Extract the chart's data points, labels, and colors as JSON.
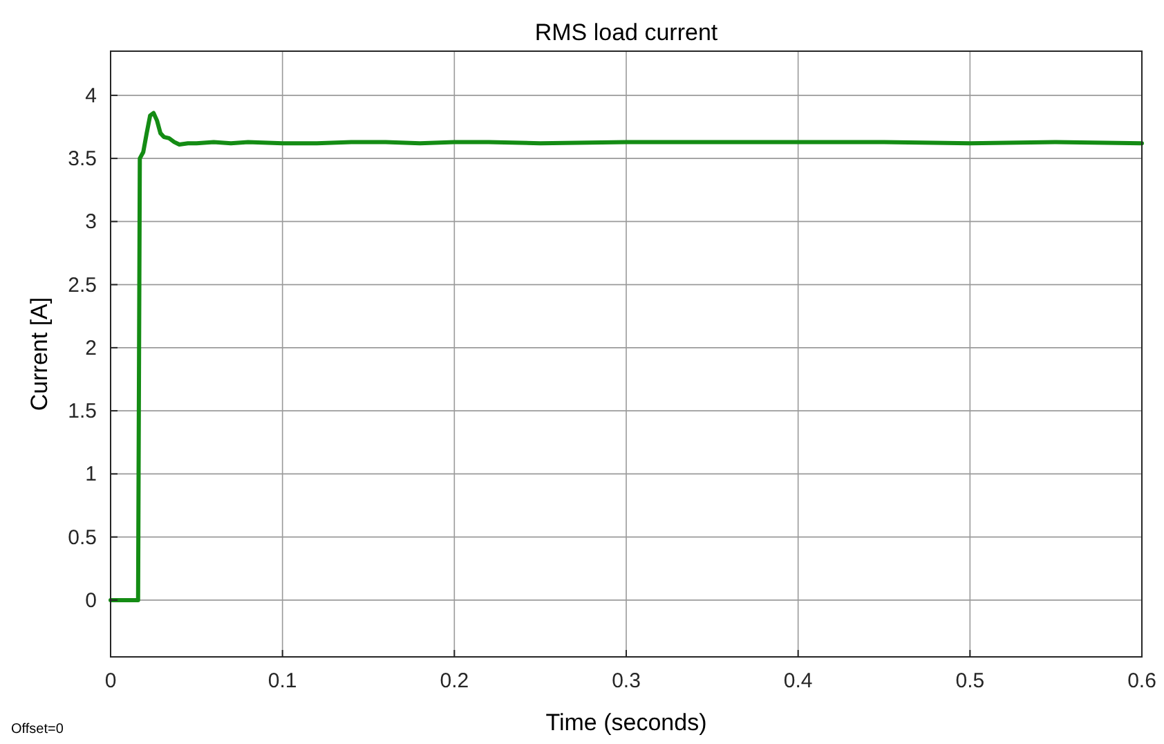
{
  "chart_data": {
    "type": "line",
    "title": "RMS load current",
    "xlabel": "Time (seconds)",
    "ylabel": "Current [A]",
    "annotations": [
      "Offset=0"
    ],
    "x": [
      0,
      0.016,
      0.017,
      0.019,
      0.021,
      0.023,
      0.025,
      0.027,
      0.029,
      0.031,
      0.034,
      0.037,
      0.04,
      0.045,
      0.05,
      0.06,
      0.07,
      0.08,
      0.1,
      0.12,
      0.14,
      0.16,
      0.18,
      0.2,
      0.22,
      0.25,
      0.3,
      0.35,
      0.4,
      0.45,
      0.5,
      0.55,
      0.6
    ],
    "series": [
      {
        "color": "#148c14",
        "values": [
          0,
          0,
          3.5,
          3.55,
          3.7,
          3.84,
          3.86,
          3.8,
          3.7,
          3.67,
          3.66,
          3.63,
          3.61,
          3.62,
          3.62,
          3.63,
          3.62,
          3.63,
          3.62,
          3.62,
          3.63,
          3.63,
          3.62,
          3.63,
          3.63,
          3.62,
          3.63,
          3.63,
          3.63,
          3.63,
          3.62,
          3.63,
          3.62
        ]
      }
    ],
    "xlim": [
      0,
      0.6
    ],
    "xticks": [
      0,
      0.1,
      0.2,
      0.3,
      0.4,
      0.5,
      0.6
    ],
    "ylim": [
      -0.45,
      4.35
    ],
    "yticks": [
      0,
      0.5,
      1,
      1.5,
      2,
      2.5,
      3,
      3.5,
      4
    ],
    "grid": true
  }
}
